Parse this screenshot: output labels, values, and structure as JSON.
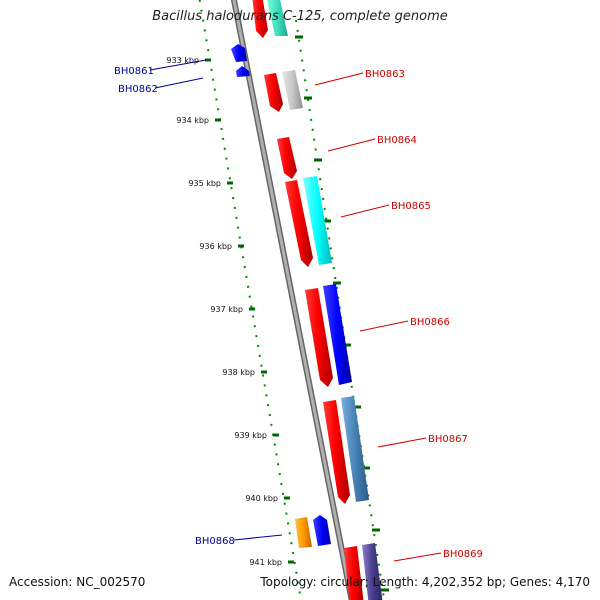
{
  "title": "Bacillus halodurans C-125, complete genome",
  "accession_text": "Accession: NC_002570",
  "summary_text": "Topology: circular; Length: 4,202,352 bp; Genes: 4,170",
  "colors": {
    "label_forward": "#cc0000",
    "label_reverse": "#000099",
    "tick": "#006600",
    "backbone": "#888888"
  },
  "ticks": [
    "933 kbp",
    "934 kbp",
    "935 kbp",
    "936 kbp",
    "937 kbp",
    "938 kbp",
    "939 kbp",
    "940 kbp",
    "941 kbp"
  ],
  "gene_labels": [
    {
      "name": "BH0861",
      "strand": "reverse"
    },
    {
      "name": "BH0862",
      "strand": "reverse"
    },
    {
      "name": "BH0863",
      "strand": "forward"
    },
    {
      "name": "BH0864",
      "strand": "forward"
    },
    {
      "name": "BH0865",
      "strand": "forward"
    },
    {
      "name": "BH0866",
      "strand": "forward"
    },
    {
      "name": "BH0867",
      "strand": "forward"
    },
    {
      "name": "BH0868",
      "strand": "reverse"
    },
    {
      "name": "BH0869",
      "strand": "forward"
    }
  ]
}
